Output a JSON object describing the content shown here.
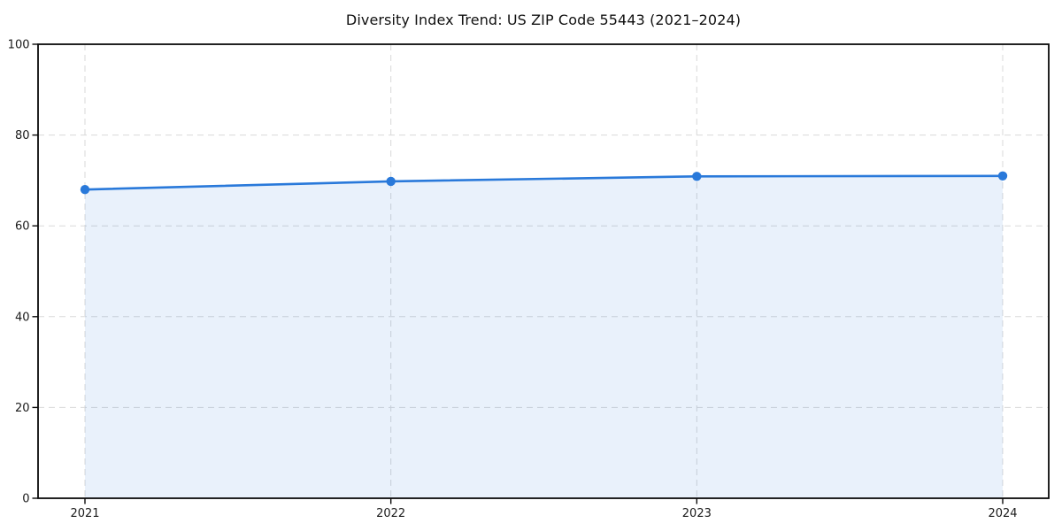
{
  "page": {
    "background_color": "#ffffff"
  },
  "chart_data": {
    "type": "area",
    "title": "Diversity Index Trend: US ZIP Code 55443 (2021–2024)",
    "x_labels": [
      "2021",
      "2022",
      "2023",
      "2024"
    ],
    "x": [
      2021,
      2022,
      2023,
      2024
    ],
    "values": [
      68.0,
      69.8,
      70.9,
      71.0
    ],
    "xlabel": "",
    "ylabel": "",
    "ylim": [
      0,
      100
    ],
    "yticks": [
      0,
      20,
      40,
      60,
      80,
      100
    ],
    "grid": true,
    "grid_style": "dashed",
    "legend": "none",
    "line_color": "#2979da",
    "marker_color": "#2979da",
    "fill_color": "rgba(41,121,218,0.10)",
    "grid_color": "#d9d9d9",
    "spine_color": "#0a0a0a",
    "tick_label_color": "#1a1a1a",
    "title_color": "#111111"
  }
}
